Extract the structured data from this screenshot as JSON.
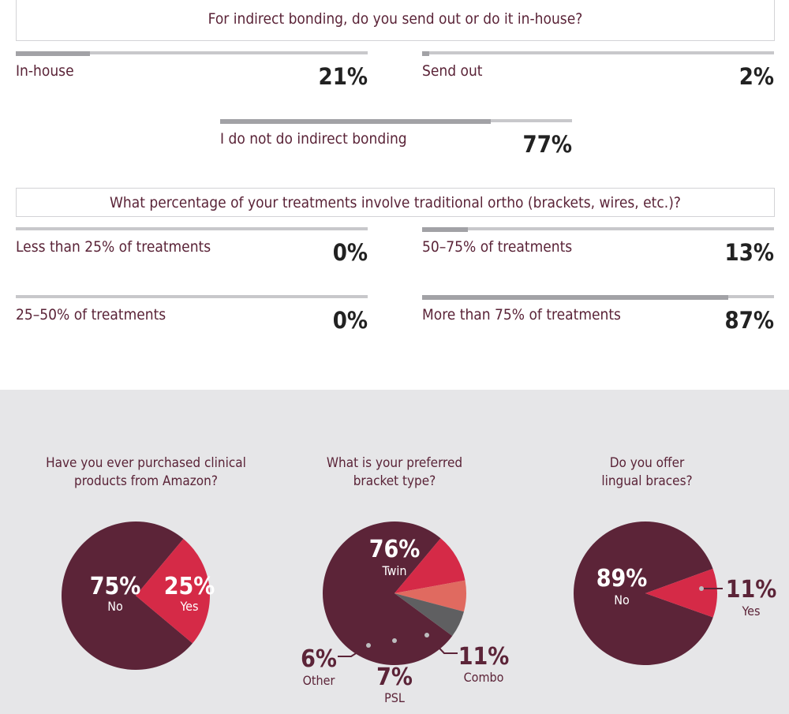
{
  "colors": {
    "maroon": "#5c2438",
    "red": "#d52a47",
    "salmon": "#e06a60",
    "dark_gray": "#5f5f61",
    "text_maroon": "#5a2337",
    "bar_track": "#c8c8cb",
    "bar_fill": "#a2a2a6",
    "panel_bg": "#e6e6e8"
  },
  "survey": {
    "q1": {
      "question": "For indirect bonding, do you send out or do it in-house?",
      "items": [
        {
          "label": "In-house",
          "pct_text": "21%",
          "value": 21
        },
        {
          "label": "Send out",
          "pct_text": "2%",
          "value": 2
        },
        {
          "label": "I do not do indirect bonding",
          "pct_text": "77%",
          "value": 77
        }
      ]
    },
    "q2": {
      "question": "What percentage of your treatments involve traditional ortho (brackets, wires, etc.)?",
      "items": [
        {
          "label": "Less than 25% of treatments",
          "pct_text": "0%",
          "value": 0
        },
        {
          "label": "50–75% of treatments",
          "pct_text": "13%",
          "value": 13
        },
        {
          "label": "25–50% of treatments",
          "pct_text": "0%",
          "value": 0
        },
        {
          "label": "More than 75% of treatments",
          "pct_text": "87%",
          "value": 87
        }
      ]
    }
  },
  "chart_data": [
    {
      "type": "pie",
      "title_lines": [
        "Have you ever purchased clinical",
        "products from Amazon?"
      ],
      "slices": [
        {
          "label": "No",
          "value": 75,
          "pct_text": "75%",
          "color": "#5c2438"
        },
        {
          "label": "Yes",
          "value": 25,
          "pct_text": "25%",
          "color": "#d52a47"
        }
      ]
    },
    {
      "type": "pie",
      "title_lines": [
        "What is your preferred",
        "bracket type?"
      ],
      "slices": [
        {
          "label": "Twin",
          "value": 76,
          "pct_text": "76%",
          "color": "#5c2438"
        },
        {
          "label": "Combo",
          "value": 11,
          "pct_text": "11%",
          "color": "#d52a47"
        },
        {
          "label": "PSL",
          "value": 7,
          "pct_text": "7%",
          "color": "#e06a60"
        },
        {
          "label": "Other",
          "value": 6,
          "pct_text": "6%",
          "color": "#5f5f61"
        }
      ]
    },
    {
      "type": "pie",
      "title_lines": [
        "Do you offer",
        "lingual braces?"
      ],
      "slices": [
        {
          "label": "No",
          "value": 89,
          "pct_text": "89%",
          "color": "#5c2438"
        },
        {
          "label": "Yes",
          "value": 11,
          "pct_text": "11%",
          "color": "#d52a47"
        }
      ]
    }
  ]
}
